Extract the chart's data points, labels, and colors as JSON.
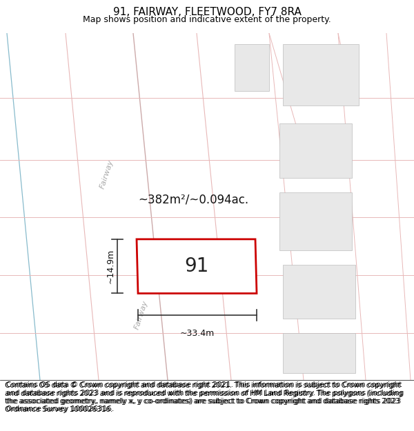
{
  "title": "91, FAIRWAY, FLEETWOOD, FY7 8RA",
  "subtitle": "Map shows position and indicative extent of the property.",
  "footer": "Contains OS data © Crown copyright and database right 2021. This information is subject to Crown copyright and database rights 2023 and is reproduced with the permission of HM Land Registry. The polygons (including the associated geometry, namely x, y co-ordinates) are subject to Crown copyright and database rights 2023 Ordnance Survey 100026316.",
  "road_label_top": "Fairway",
  "road_label_bottom": "Fairway",
  "label_number": "91",
  "area_label": "~382m²/~0.094ac.",
  "dim_width": "~33.4m",
  "dim_height": "~14.9m",
  "title_fontsize": 11,
  "subtitle_fontsize": 9,
  "footer_fontsize": 7.5,
  "number_fontsize": 20,
  "area_fontsize": 12,
  "bg_white": "#ffffff",
  "map_bg": "#ffffff",
  "plot_edge_color": "#cc0000",
  "road_line_color": "#e8b8b8",
  "blue_line_color": "#88bbcc",
  "neighbor_fill": "#e8e8e8",
  "neighbor_edge": "#ddaaaa",
  "road_text_color": "#aaaaaa",
  "dim_color": "#333333"
}
